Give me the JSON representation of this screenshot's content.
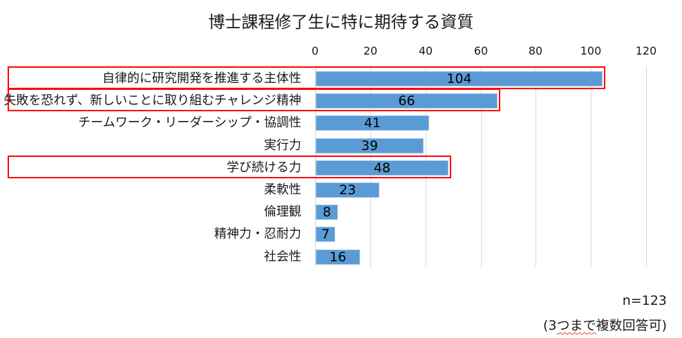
{
  "chart_data": {
    "type": "bar",
    "orientation": "horizontal",
    "title": "博士課程修了生に特に期待する資質",
    "xlabel": "",
    "ylabel": "",
    "xlim": [
      0,
      120
    ],
    "x_ticks": [
      "0",
      "20",
      "40",
      "60",
      "80",
      "100",
      "120"
    ],
    "grid": true,
    "legend": null,
    "categories": [
      "自律的に研究開発を推進する主体性",
      "失敗を恐れず、新しいことに取り組むチャレンジ精神",
      "チームワーク・リーダーシップ・協調性",
      "実行力",
      "学び続ける力",
      "柔軟性",
      "倫理観",
      "精神力・忍耐力",
      "社会性"
    ],
    "values": [
      104,
      66,
      41,
      39,
      48,
      23,
      8,
      7,
      16
    ],
    "highlighted": [
      "自律的に研究開発を推進する主体性",
      "失敗を恐れず、新しいことに取り組むチャレンジ精神",
      "学び続ける力"
    ],
    "annotations": [
      "n=123",
      "(3つまで複数回答可)"
    ],
    "colors": {
      "bar": "#5b9bd5",
      "highlight_box": "#ff0000",
      "grid": "#d9d9d9"
    }
  },
  "notes": {
    "sample_size": "n=123",
    "answer_note_prefix": "(3",
    "answer_note_squiggle": "つまで",
    "answer_note_suffix": "複数回答可)"
  }
}
